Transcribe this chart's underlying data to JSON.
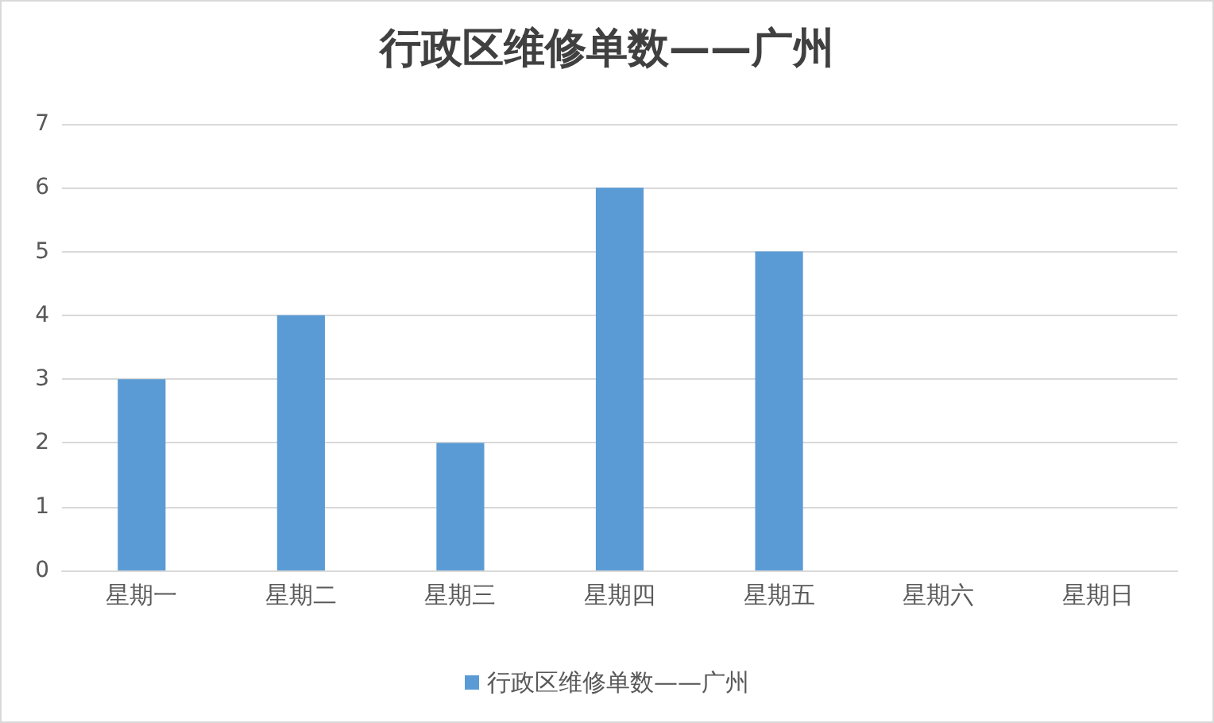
{
  "chart_data": {
    "type": "bar",
    "title": "行政区维修单数——广州",
    "categories": [
      "星期一",
      "星期二",
      "星期三",
      "星期四",
      "星期五",
      "星期六",
      "星期日"
    ],
    "series": [
      {
        "name": "行政区维修单数——广州",
        "color": "#5b9bd5",
        "values": [
          3,
          4,
          2,
          6,
          5,
          0,
          0
        ]
      }
    ],
    "ylim": [
      0,
      7
    ],
    "yticks": [
      0,
      1,
      2,
      3,
      4,
      5,
      6,
      7
    ],
    "grid": "y",
    "legend": "bottom"
  }
}
